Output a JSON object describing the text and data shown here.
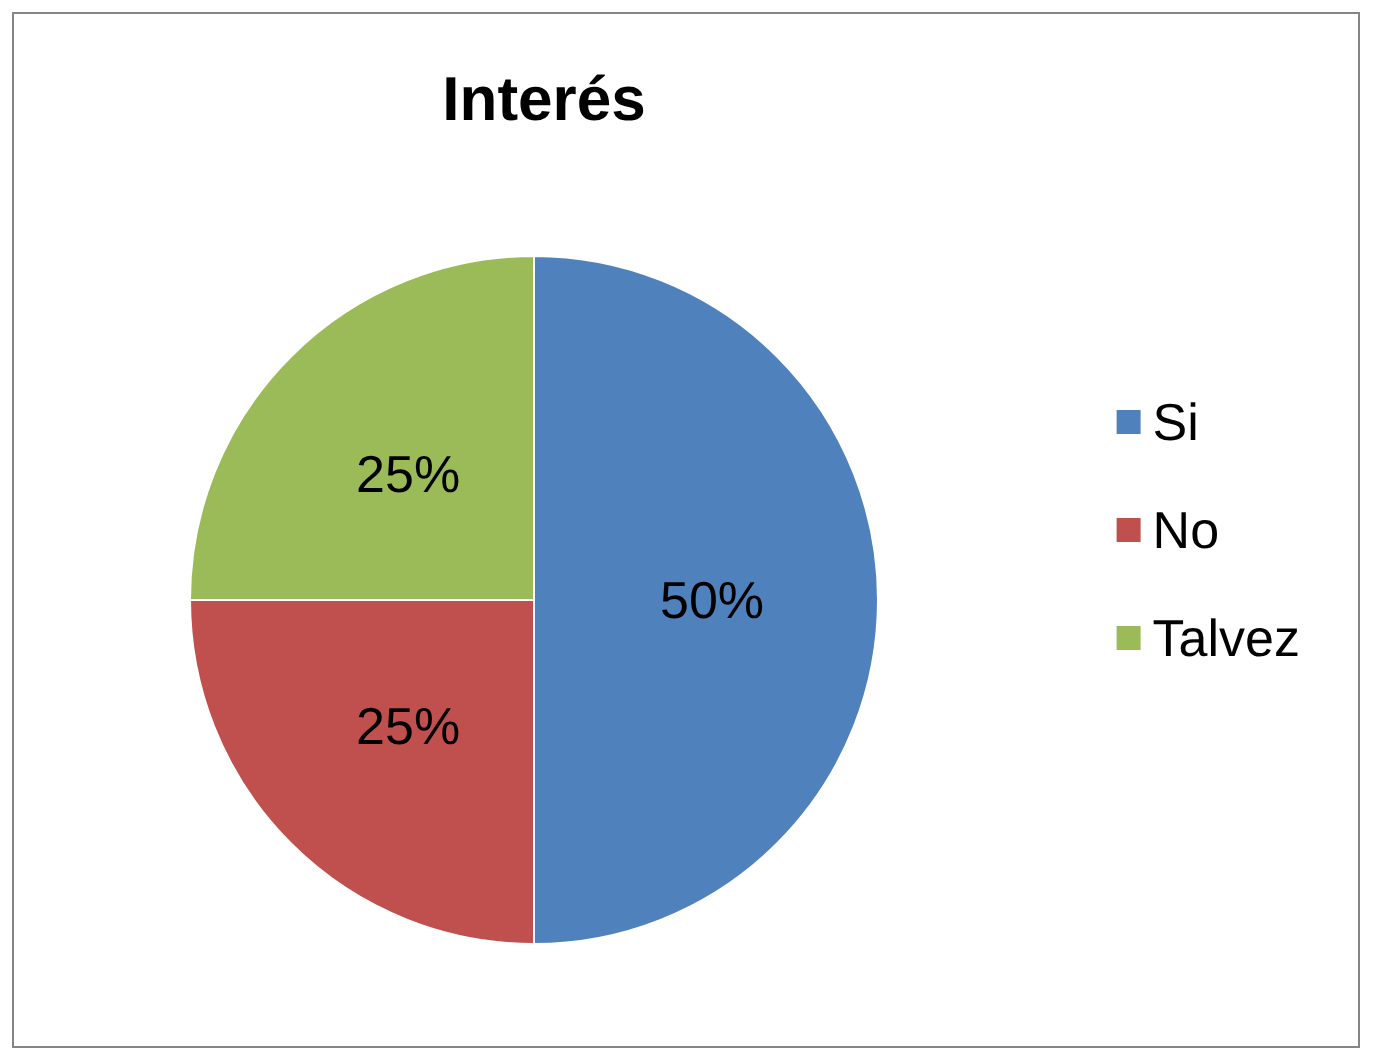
{
  "chart_data": {
    "type": "pie",
    "title": "Interés",
    "categories": [
      "Si",
      "No",
      "Talvez"
    ],
    "values": [
      50,
      25,
      25
    ],
    "colors": [
      "#4f81bd",
      "#c0504d",
      "#9bbb59"
    ],
    "value_labels": [
      "50%",
      "25%",
      "25%"
    ],
    "legend": "right"
  }
}
